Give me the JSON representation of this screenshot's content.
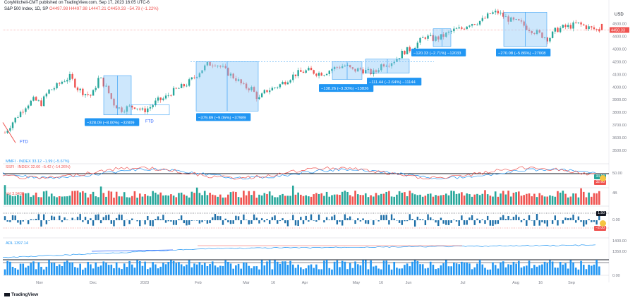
{
  "header": {
    "publisher": "CoryMitchell-CMT published on TradingView.com, Sep 17, 2023 16:05 UTC-6",
    "symbol": "S&P 500 Index, 1D, SP",
    "o": "O4497.98",
    "h": "H4497.98",
    "l": "L4447.21",
    "c": "C4450.33",
    "change": "−54.78 (−1.22%)"
  },
  "currency": "USD",
  "brand": "TradingView",
  "colors": {
    "up": "#26a69a",
    "down": "#ef5350",
    "accent": "#2962ff",
    "box": "#90caf9",
    "label": "#2196f3",
    "axis": "#787b86"
  },
  "price_axis": {
    "labels": [
      "4500.00",
      "4400.00",
      "4300.00",
      "4200.00",
      "4100.00",
      "4000.00",
      "3900.00",
      "3800.00",
      "3700.00",
      "3600.00",
      "3500.00"
    ],
    "current": "4450.33"
  },
  "time_axis": [
    "Nov",
    "Dec",
    "2023",
    "Feb",
    "Mar",
    "16",
    "Apr",
    "May",
    "16",
    "Jun",
    "Jul",
    "Aug",
    "16",
    "Sep"
  ],
  "ftd_labels": [
    "FTD",
    "FTD"
  ],
  "measure_boxes": [
    {
      "label": "−328.09 (−8.00%) −32809"
    },
    {
      "label": "−379.89 (−9.05%) −37989"
    },
    {
      "label": "−138.26 (−3.30%) −13826"
    },
    {
      "label": "−111.44 (−2.64%) −11144"
    },
    {
      "label": "−120.33 (−2.71%) −12033"
    },
    {
      "label": "−270.08 (−5.86%) −27008"
    }
  ],
  "indicators": {
    "mmfi": "MMFI · INDEX  33.12  −1.99 (−5.67%)",
    "ssfi": "SSFI · INDEX  32.60  −5.42 (−14.26%)",
    "mmfi_badge": "33.12",
    "ssfi_badge": "32.60",
    "breadth_axis": [
      "50.00",
      "30.00"
    ],
    "vol": "Vol  3.943B",
    "vol_axis": "4B",
    "osc_badge": "1.50",
    "osc_badge2": "−2.00",
    "osc_axis": "0.00",
    "adl": "ADL  1397.14",
    "adl_axis": [
      "1400.00",
      "1350.00"
    ],
    "bottom_axis": "0.00"
  },
  "chart_data": {
    "type": "candlestick",
    "title": "S&P 500 Index, 1D, SP",
    "x_range": [
      "2022-10",
      "2023-09"
    ],
    "ylim": [
      3450,
      4620
    ],
    "close_path": [
      3640,
      3720,
      3790,
      3860,
      3900,
      3870,
      3970,
      4000,
      4050,
      4080,
      3990,
      3950,
      3930,
      4080,
      3990,
      3870,
      3820,
      3840,
      3850,
      3810,
      3840,
      3890,
      3910,
      3960,
      3990,
      4020,
      4070,
      4130,
      4180,
      4190,
      4150,
      4100,
      4060,
      4000,
      3990,
      3900,
      3970,
      3990,
      4020,
      4060,
      4100,
      4120,
      4130,
      4110,
      4110,
      4140,
      4160,
      4170,
      4130,
      4140,
      4120,
      4110,
      4180,
      4190,
      4220,
      4280,
      4300,
      4350,
      4400,
      4380,
      4390,
      4420,
      4450,
      4460,
      4500,
      4510,
      4530,
      4580,
      4590,
      4550,
      4520,
      4510,
      4470,
      4440,
      4410,
      4380,
      4450,
      4470,
      4480,
      4500,
      4480,
      4460,
      4450
    ],
    "last": 4450.33,
    "drawdowns": [
      {
        "label": "−328.09 (−8.00%) −32809"
      },
      {
        "label": "−379.89 (−9.05%) −37989"
      },
      {
        "label": "−138.26 (−3.30%) −13826"
      },
      {
        "label": "−111.44 (−2.64%) −11144"
      },
      {
        "label": "−120.33 (−2.71%) −12033"
      },
      {
        "label": "−270.08 (−5.86%) −27008"
      }
    ]
  }
}
